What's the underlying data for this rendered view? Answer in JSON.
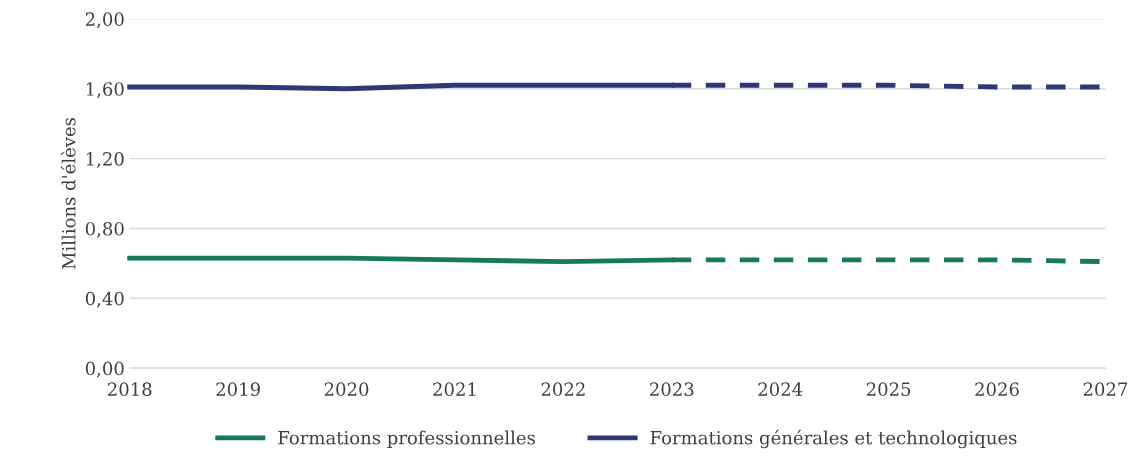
{
  "chart_data": {
    "type": "line",
    "ylabel": "Millions d'élèves",
    "x": [
      2018,
      2019,
      2020,
      2021,
      2022,
      2023,
      2024,
      2025,
      2026,
      2027
    ],
    "xlim": [
      2018,
      2027
    ],
    "xticks": [
      2018,
      2019,
      2020,
      2021,
      2022,
      2023,
      2024,
      2025,
      2026,
      2027
    ],
    "ylim": [
      0,
      2
    ],
    "yticks": [
      {
        "value": 0,
        "label": "0,00"
      },
      {
        "value": 0.4,
        "label": "0,40"
      },
      {
        "value": 0.8,
        "label": "0,80"
      },
      {
        "value": 1.2,
        "label": "1,20"
      },
      {
        "value": 1.6,
        "label": "1,60"
      },
      {
        "value": 2,
        "label": "2,00"
      }
    ],
    "grid": "y",
    "legend": "bottom",
    "marker": "none",
    "series": [
      {
        "name": "Formations professionnelles",
        "color": "#177a5c",
        "line_style": "solid",
        "values": [
          0.63,
          0.63,
          0.63,
          0.62,
          0.61,
          0.62,
          null,
          null,
          null,
          null
        ]
      },
      {
        "color": "#177a5c",
        "line_style": "dashed",
        "values": [
          null,
          null,
          null,
          null,
          null,
          0.62,
          0.62,
          0.62,
          0.62,
          0.61
        ]
      },
      {
        "name": "Formations générales et technologiques",
        "color": "#2c3878",
        "line_style": "solid",
        "values": [
          1.61,
          1.61,
          1.6,
          1.62,
          1.62,
          1.62,
          null,
          null,
          null,
          null
        ]
      },
      {
        "color": "#2c3878",
        "line_style": "dashed",
        "values": [
          null,
          null,
          null,
          null,
          null,
          1.62,
          1.62,
          1.62,
          1.61,
          1.61
        ]
      }
    ]
  }
}
